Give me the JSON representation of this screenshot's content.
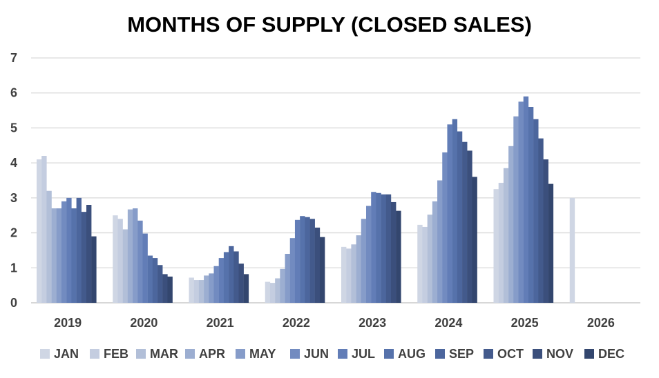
{
  "chart_data": {
    "type": "bar",
    "title": "MONTHS OF SUPPLY (CLOSED SALES)",
    "xlabel": "",
    "ylabel": "",
    "ylim": [
      0,
      7
    ],
    "yticks": [
      "0",
      "1",
      "2",
      "3",
      "4",
      "5",
      "6",
      "7"
    ],
    "grid": true,
    "legend_position": "bottom",
    "categories": [
      "2019",
      "2020",
      "2021",
      "2022",
      "2023",
      "2024",
      "2025",
      "2026"
    ],
    "series": [
      {
        "name": "JAN",
        "color": "#cfd6e4",
        "values": [
          4.1,
          2.5,
          0.72,
          0.6,
          1.6,
          2.23,
          3.25,
          3.0
        ]
      },
      {
        "name": "FEB",
        "color": "#c4cde0",
        "values": [
          4.2,
          2.4,
          0.65,
          0.57,
          1.55,
          2.17,
          3.43,
          null
        ]
      },
      {
        "name": "MAR",
        "color": "#b2bfd8",
        "values": [
          3.2,
          2.1,
          0.65,
          0.7,
          1.67,
          2.52,
          3.85,
          null
        ]
      },
      {
        "name": "APR",
        "color": "#9caed1",
        "values": [
          2.7,
          2.67,
          0.78,
          0.97,
          1.93,
          2.9,
          4.48,
          null
        ]
      },
      {
        "name": "MAY",
        "color": "#869cc9",
        "values": [
          2.7,
          2.7,
          0.84,
          1.4,
          2.4,
          3.5,
          5.33,
          null
        ]
      },
      {
        "name": "JUN",
        "color": "#728bc0",
        "values": [
          2.9,
          2.35,
          1.05,
          1.85,
          2.77,
          4.3,
          5.75,
          null
        ]
      },
      {
        "name": "JUL",
        "color": "#627db7",
        "values": [
          3.0,
          1.98,
          1.28,
          2.37,
          3.17,
          5.1,
          5.9,
          null
        ]
      },
      {
        "name": "AUG",
        "color": "#5672ab",
        "values": [
          2.7,
          1.35,
          1.45,
          2.48,
          3.14,
          5.25,
          5.6,
          null
        ]
      },
      {
        "name": "SEP",
        "color": "#4c669d",
        "values": [
          3.0,
          1.28,
          1.62,
          2.45,
          3.1,
          4.9,
          5.25,
          null
        ]
      },
      {
        "name": "OCT",
        "color": "#435a8c",
        "values": [
          2.6,
          1.08,
          1.47,
          2.4,
          3.1,
          4.6,
          4.7,
          null
        ]
      },
      {
        "name": "NOV",
        "color": "#3b4f7c",
        "values": [
          2.8,
          0.82,
          1.12,
          2.15,
          2.88,
          4.35,
          4.1,
          null
        ]
      },
      {
        "name": "DEC",
        "color": "#33466e",
        "values": [
          1.9,
          0.75,
          0.82,
          1.88,
          2.63,
          3.6,
          3.4,
          null
        ]
      }
    ]
  }
}
